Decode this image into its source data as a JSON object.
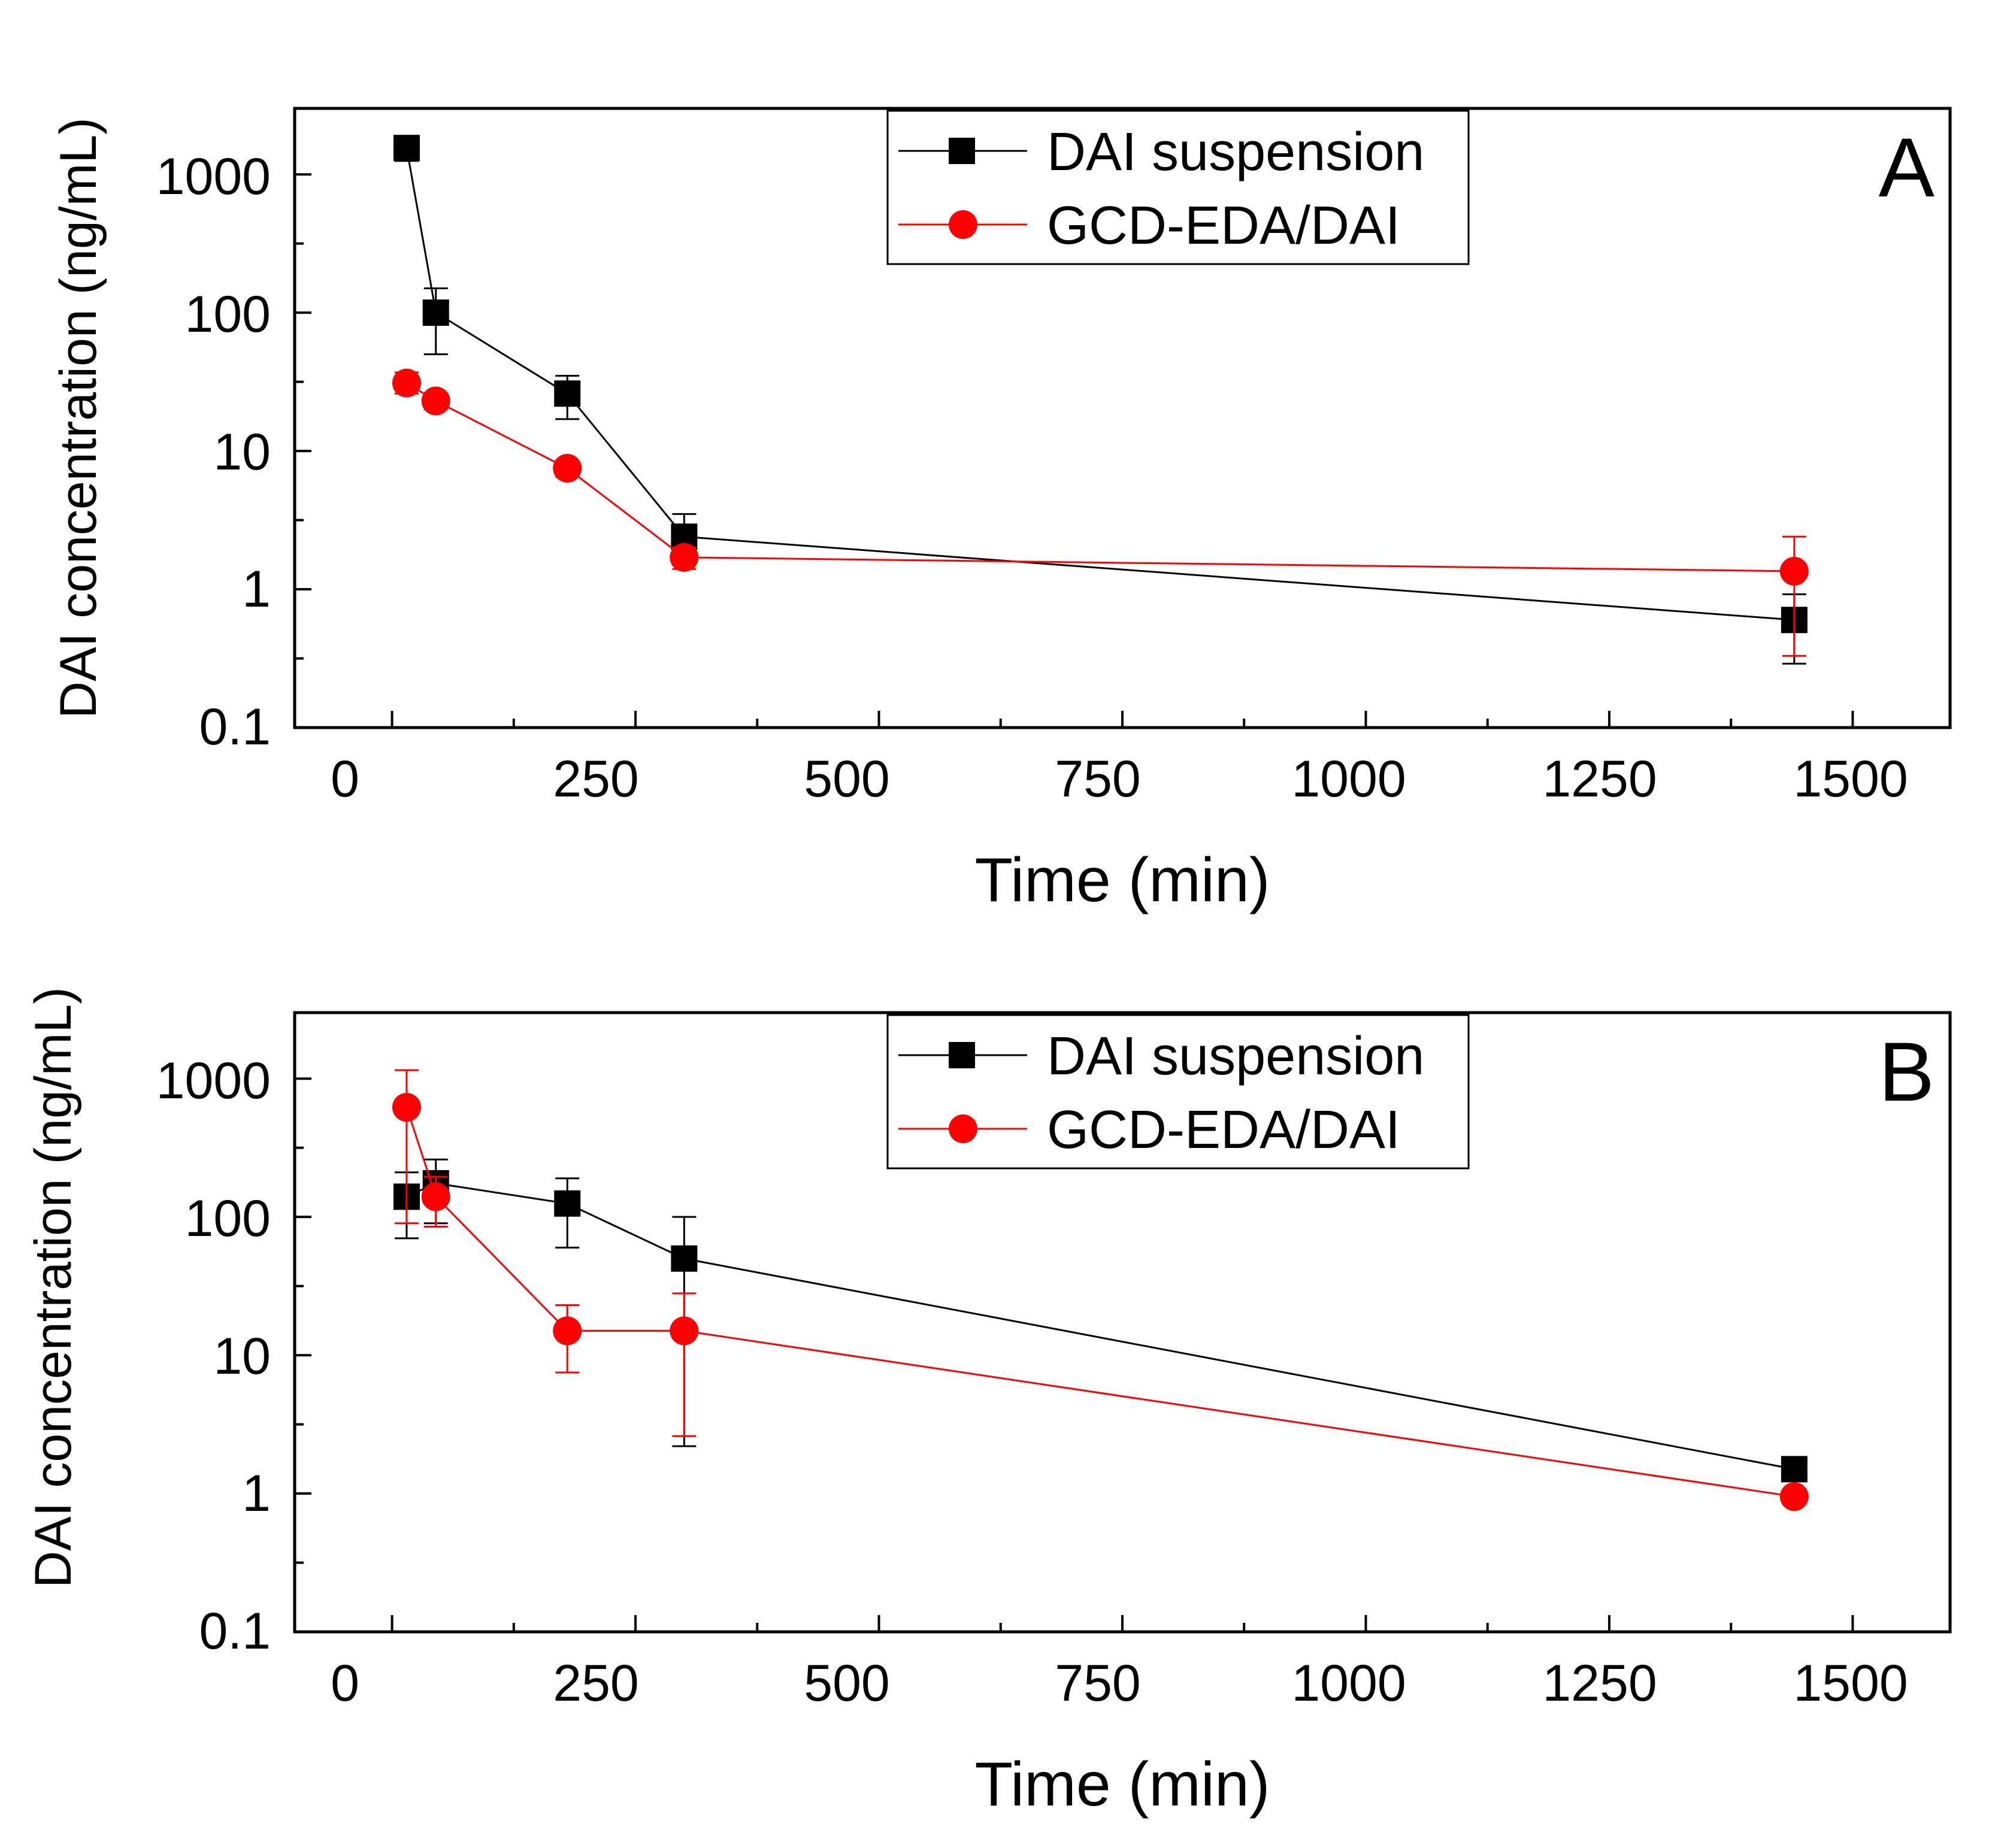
{
  "chart_data": [
    {
      "type": "line",
      "panel_label": "A",
      "title": "",
      "xlabel": "Time (min)",
      "ylabel": "DAI concentration (ng/mL)",
      "yscale": "log",
      "xlim": [
        -100,
        1600
      ],
      "ylim": [
        0.1,
        3000
      ],
      "xticks": [
        0,
        250,
        500,
        750,
        1000,
        1250,
        1500
      ],
      "xtick_labels": [
        "0",
        "250",
        "500",
        "750",
        "1000",
        "1250",
        "1500"
      ],
      "yticks": [
        0.1,
        1,
        10,
        100,
        1000
      ],
      "ytick_labels": [
        "0.1",
        "1",
        "10",
        "100",
        "1000"
      ],
      "legend_position": "top-center",
      "series": [
        {
          "name": "DAI suspension",
          "color": "#000000",
          "marker": "square",
          "x": [
            15,
            45,
            180,
            300,
            1440
          ],
          "y": [
            1550,
            100,
            26,
            2.4,
            0.6
          ],
          "err_low": [
            1250,
            50,
            17,
            1.5,
            0.29
          ],
          "err_high": [
            1900,
            150,
            35,
            3.5,
            0.92
          ]
        },
        {
          "name": "GCD-EDA/DAI",
          "color": "#ff0000",
          "marker": "circle",
          "x": [
            15,
            45,
            180,
            300,
            1440
          ],
          "y": [
            31,
            23,
            7.5,
            1.7,
            1.35
          ],
          "err_low": [
            26,
            20,
            6.5,
            1.4,
            0.33
          ],
          "err_high": [
            37,
            26,
            8.5,
            2.0,
            2.4
          ]
        }
      ]
    },
    {
      "type": "line",
      "panel_label": "B",
      "title": "",
      "xlabel": "Time (min)",
      "ylabel": "DAI concentration (ng/mL)",
      "yscale": "log",
      "xlim": [
        -100,
        1600
      ],
      "ylim": [
        0.1,
        3000
      ],
      "xticks": [
        0,
        250,
        500,
        750,
        1000,
        1250,
        1500
      ],
      "xtick_labels": [
        "0",
        "250",
        "500",
        "750",
        "1000",
        "1250",
        "1500"
      ],
      "yticks": [
        0.1,
        1,
        10,
        100,
        1000
      ],
      "ytick_labels": [
        "0.1",
        "1",
        "10",
        "100",
        "1000"
      ],
      "legend_position": "top-center",
      "series": [
        {
          "name": "DAI suspension",
          "color": "#000000",
          "marker": "square",
          "x": [
            15,
            45,
            180,
            300,
            1440
          ],
          "y": [
            140,
            175,
            125,
            50,
            1.5
          ],
          "err_low": [
            70,
            90,
            60,
            2.2,
            1.5
          ],
          "err_high": [
            210,
            260,
            190,
            100,
            1.5
          ]
        },
        {
          "name": "GCD-EDA/DAI",
          "color": "#ff0000",
          "marker": "circle",
          "x": [
            15,
            45,
            180,
            300,
            1440
          ],
          "y": [
            620,
            140,
            15,
            15,
            0.95
          ],
          "err_low": [
            90,
            85,
            7.5,
            2.6,
            0.95
          ],
          "err_high": [
            1150,
            195,
            23,
            28,
            0.95
          ]
        }
      ]
    }
  ]
}
